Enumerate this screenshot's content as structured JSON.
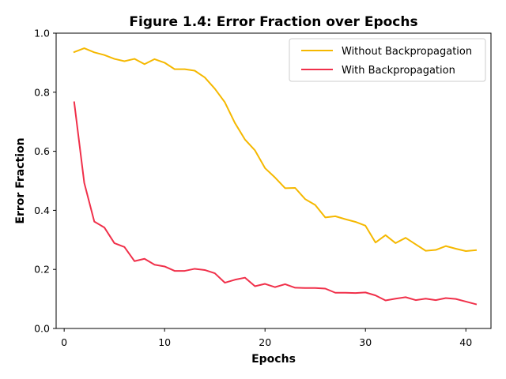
{
  "chart_data": {
    "type": "line",
    "title": "Figure 1.4: Error Fraction over Epochs",
    "xlabel": "Epochs",
    "ylabel": "Error Fraction",
    "xlim": [
      -0.8,
      42.5
    ],
    "ylim": [
      0.0,
      1.0
    ],
    "xticks": [
      0,
      10,
      20,
      30,
      40
    ],
    "yticks": [
      0.0,
      0.2,
      0.4,
      0.6,
      0.8,
      1.0
    ],
    "ytick_labels": [
      "0.0",
      "0.2",
      "0.4",
      "0.6",
      "0.8",
      "1.0"
    ],
    "grid": false,
    "legend_position": "top-right",
    "x": [
      1,
      2,
      3,
      4,
      5,
      6,
      7,
      8,
      9,
      10,
      11,
      12,
      13,
      14,
      15,
      16,
      17,
      18,
      19,
      20,
      21,
      22,
      23,
      24,
      25,
      26,
      27,
      28,
      29,
      30,
      31,
      32,
      33,
      34,
      35,
      36,
      37,
      38,
      39,
      40,
      41
    ],
    "series": [
      {
        "name": "Without Backpropagation",
        "color": "#f5b800",
        "values": [
          0.936,
          0.949,
          0.935,
          0.926,
          0.913,
          0.905,
          0.913,
          0.895,
          0.912,
          0.9,
          0.878,
          0.878,
          0.873,
          0.85,
          0.812,
          0.766,
          0.696,
          0.64,
          0.603,
          0.543,
          0.511,
          0.475,
          0.476,
          0.438,
          0.418,
          0.376,
          0.38,
          0.37,
          0.361,
          0.348,
          0.291,
          0.316,
          0.289,
          0.307,
          0.285,
          0.263,
          0.266,
          0.279,
          0.27,
          0.262,
          0.265
        ]
      },
      {
        "name": "With Backpropagation",
        "color": "#f0304a",
        "values": [
          0.766,
          0.493,
          0.362,
          0.342,
          0.289,
          0.276,
          0.228,
          0.236,
          0.216,
          0.21,
          0.195,
          0.195,
          0.202,
          0.198,
          0.187,
          0.155,
          0.165,
          0.172,
          0.143,
          0.151,
          0.14,
          0.15,
          0.138,
          0.137,
          0.137,
          0.135,
          0.121,
          0.121,
          0.12,
          0.122,
          0.112,
          0.095,
          0.101,
          0.106,
          0.096,
          0.101,
          0.096,
          0.103,
          0.1,
          0.091,
          0.082
        ]
      }
    ]
  }
}
